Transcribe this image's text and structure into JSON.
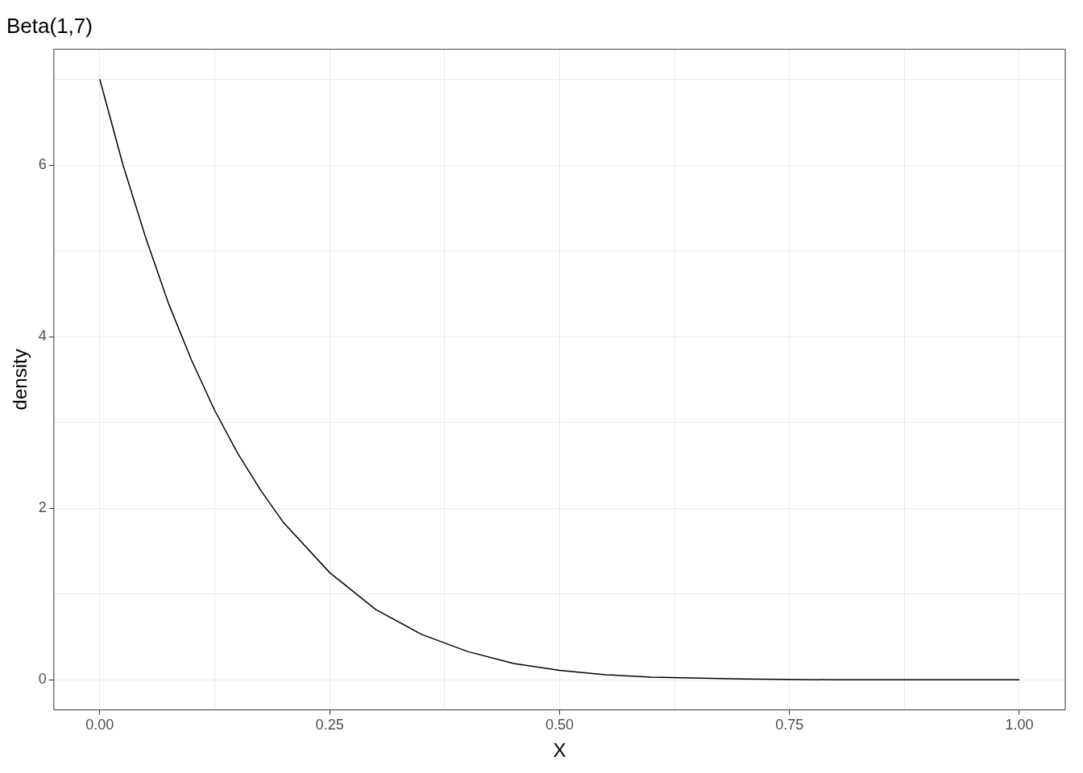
{
  "chart_data": {
    "type": "line",
    "title": "Beta(1,7)",
    "xlabel": "X",
    "ylabel": "density",
    "x": [
      0,
      0.025,
      0.05,
      0.075,
      0.1,
      0.125,
      0.15,
      0.175,
      0.2,
      0.25,
      0.3,
      0.35,
      0.4,
      0.45,
      0.5,
      0.55,
      0.6,
      0.7,
      0.8,
      0.9,
      1.0
    ],
    "series": [
      {
        "color": "#000000",
        "values": [
          7,
          6.01,
          5.15,
          4.38,
          3.72,
          3.14,
          2.64,
          2.21,
          1.83,
          1.25,
          0.82,
          0.53,
          0.33,
          0.19,
          0.11,
          0.06,
          0.03,
          0.01,
          0,
          0,
          0
        ]
      }
    ],
    "xlim": [
      -0.05,
      1.05
    ],
    "ylim": [
      -0.35,
      7.35
    ],
    "xticks": [
      {
        "value": 0,
        "label": "0.00"
      },
      {
        "value": 0.125,
        "label": null
      },
      {
        "value": 0.25,
        "label": "0.25"
      },
      {
        "value": 0.375,
        "label": null
      },
      {
        "value": 0.5,
        "label": "0.50"
      },
      {
        "value": 0.625,
        "label": null
      },
      {
        "value": 0.75,
        "label": "0.75"
      },
      {
        "value": 0.875,
        "label": null
      },
      {
        "value": 1,
        "label": "1.00"
      }
    ],
    "yticks": [
      0,
      {
        "value": 1,
        "label": null
      },
      2,
      {
        "value": 3,
        "label": null
      },
      4,
      {
        "value": 5,
        "label": null
      },
      6,
      {
        "value": 7,
        "label": null
      }
    ],
    "grid": true,
    "marker": "none",
    "line_style": "solid",
    "legend": false
  }
}
